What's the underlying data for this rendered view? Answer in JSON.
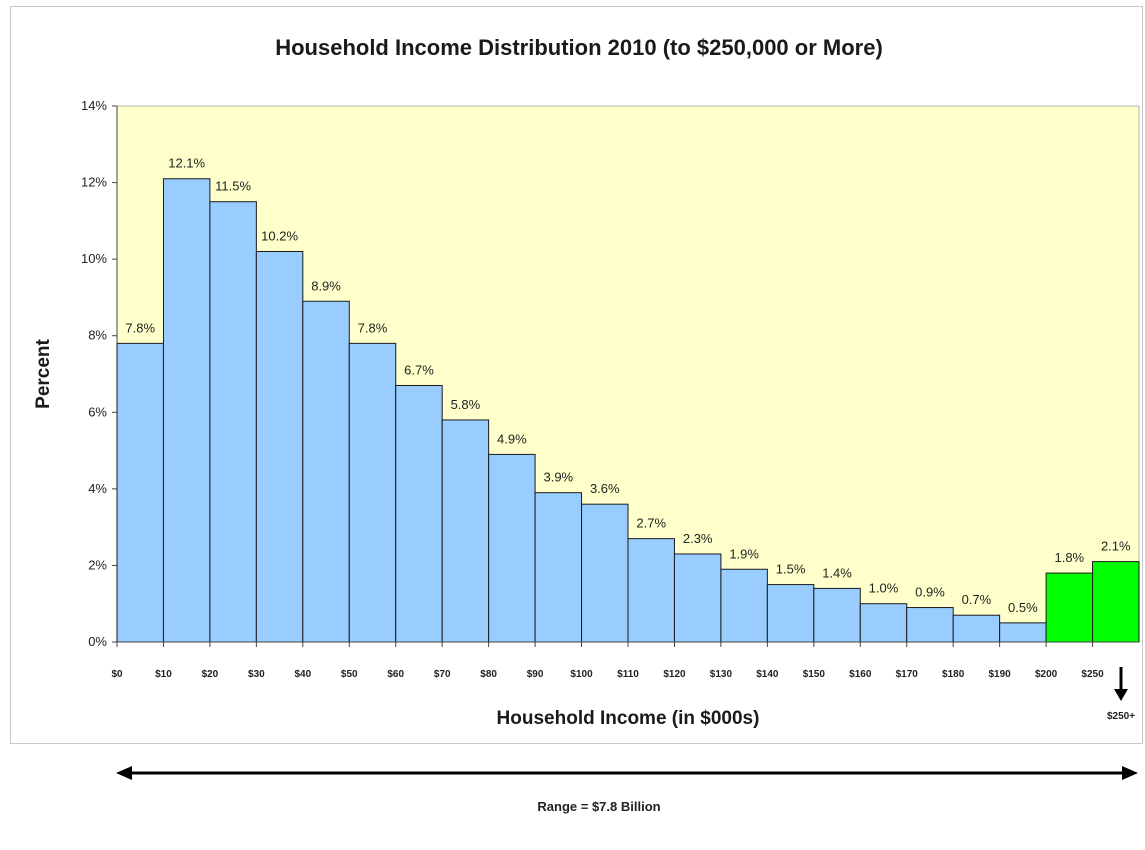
{
  "chart_data": {
    "type": "bar",
    "title": "Household Income Distribution 2010 (to $250,000 or More)",
    "xlabel": "Household Income (in $000s)",
    "ylabel": "Percent",
    "ylim": [
      0,
      14
    ],
    "yticks": [
      "0%",
      "2%",
      "4%",
      "6%",
      "8%",
      "10%",
      "12%",
      "14%"
    ],
    "xticks": [
      "$0",
      "$10",
      "$20",
      "$30",
      "$40",
      "$50",
      "$60",
      "$70",
      "$80",
      "$90",
      "$100",
      "$110",
      "$120",
      "$130",
      "$140",
      "$150",
      "$160",
      "$170",
      "$180",
      "$190",
      "$200",
      "$250"
    ],
    "xtick_overflow_label": "$250+",
    "values": [
      7.8,
      12.1,
      11.5,
      10.2,
      8.9,
      7.8,
      6.7,
      5.8,
      4.9,
      3.9,
      3.6,
      2.7,
      2.3,
      1.9,
      1.5,
      1.4,
      1.0,
      0.9,
      0.7,
      0.5,
      1.8,
      2.1
    ],
    "value_labels": [
      "7.8%",
      "12.1%",
      "11.5%",
      "10.2%",
      "8.9%",
      "7.8%",
      "6.7%",
      "5.8%",
      "4.9%",
      "3.9%",
      "3.6%",
      "2.7%",
      "2.3%",
      "1.9%",
      "1.5%",
      "1.4%",
      "1.0%",
      "0.9%",
      "0.7%",
      "0.5%",
      "1.8%",
      "2.1%"
    ],
    "highlight_from_index": 20,
    "grid": false,
    "legend": "none"
  },
  "range_note": "Range = $7.8 Billion",
  "colors": {
    "plot_background": "#ffffcc",
    "bar_fill": "#99ccff",
    "bar_highlight_fill": "#00ff00",
    "bar_stroke": "#1a1a1a"
  }
}
